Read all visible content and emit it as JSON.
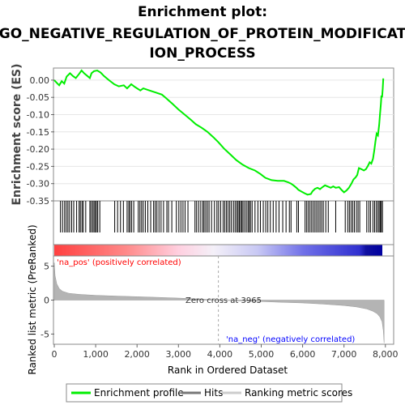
{
  "title_line1": "Enrichment plot:",
  "title_line2": "GO_NEGATIVE_REGULATION_OF_PROTEIN_MODIFICAT",
  "title_line3": "ION_PROCESS",
  "colors": {
    "enrichment": "#00ee00",
    "hits": "#000000",
    "metric_fill": "#b4b4b4",
    "pos_label": "#ff0000",
    "neg_label": "#0000ff",
    "zero_line": "#aaaaaa"
  },
  "chart_data": {
    "type": "line",
    "xlabel": "Rank in Ordered Dataset",
    "es_ylabel": "Enrichment score (ES)",
    "metric_ylabel": "Ranked list metric (PreRanked)",
    "xlim": [
      0,
      8200
    ],
    "x_ticks": [
      0,
      1000,
      2000,
      3000,
      4000,
      5000,
      6000,
      7000,
      8000
    ],
    "x_tick_labels": [
      "0",
      "1,000",
      "2,000",
      "3,000",
      "4,000",
      "5,000",
      "6,000",
      "7,000",
      "8,000"
    ],
    "es_ylim": [
      -0.35,
      0.035
    ],
    "es_ticks": [
      0.0,
      -0.05,
      -0.1,
      -0.15,
      -0.2,
      -0.25,
      -0.3,
      -0.35
    ],
    "es_tick_labels": [
      "0.00",
      "-0.05",
      "-0.10",
      "-0.15",
      "-0.20",
      "-0.25",
      "-0.30",
      "-0.35"
    ],
    "metric_ylim": [
      -6.5,
      6.5
    ],
    "metric_ticks": [
      5,
      0,
      -5
    ],
    "metric_tick_labels": [
      "5",
      "0",
      "-5"
    ],
    "zero_cross_rank": 3965,
    "zero_cross_label": "Zero cross at 3965",
    "pos_label": "'na_pos' (positively correlated)",
    "neg_label": "'na_neg' (negatively correlated)",
    "es_curve": [
      [
        0,
        0.0
      ],
      [
        60,
        -0.008
      ],
      [
        120,
        -0.015
      ],
      [
        180,
        -0.003
      ],
      [
        240,
        -0.01
      ],
      [
        300,
        0.01
      ],
      [
        380,
        0.02
      ],
      [
        450,
        0.012
      ],
      [
        520,
        0.006
      ],
      [
        600,
        0.018
      ],
      [
        660,
        0.028
      ],
      [
        720,
        0.02
      ],
      [
        800,
        0.012
      ],
      [
        860,
        0.006
      ],
      [
        900,
        0.02
      ],
      [
        960,
        0.026
      ],
      [
        1040,
        0.028
      ],
      [
        1120,
        0.022
      ],
      [
        1200,
        0.012
      ],
      [
        1320,
        0.0
      ],
      [
        1450,
        -0.012
      ],
      [
        1560,
        -0.018
      ],
      [
        1680,
        -0.015
      ],
      [
        1760,
        -0.024
      ],
      [
        1860,
        -0.012
      ],
      [
        1950,
        -0.02
      ],
      [
        2080,
        -0.03
      ],
      [
        2150,
        -0.024
      ],
      [
        2300,
        -0.03
      ],
      [
        2450,
        -0.036
      ],
      [
        2600,
        -0.042
      ],
      [
        2700,
        -0.052
      ],
      [
        2850,
        -0.068
      ],
      [
        3000,
        -0.085
      ],
      [
        3150,
        -0.1
      ],
      [
        3300,
        -0.115
      ],
      [
        3420,
        -0.128
      ],
      [
        3560,
        -0.138
      ],
      [
        3700,
        -0.15
      ],
      [
        3840,
        -0.165
      ],
      [
        3965,
        -0.18
      ],
      [
        4100,
        -0.198
      ],
      [
        4250,
        -0.215
      ],
      [
        4400,
        -0.232
      ],
      [
        4550,
        -0.245
      ],
      [
        4700,
        -0.255
      ],
      [
        4850,
        -0.262
      ],
      [
        4980,
        -0.272
      ],
      [
        5100,
        -0.283
      ],
      [
        5250,
        -0.29
      ],
      [
        5400,
        -0.292
      ],
      [
        5550,
        -0.292
      ],
      [
        5650,
        -0.296
      ],
      [
        5720,
        -0.3
      ],
      [
        5780,
        -0.305
      ],
      [
        5850,
        -0.312
      ],
      [
        5900,
        -0.318
      ],
      [
        5960,
        -0.322
      ],
      [
        6050,
        -0.328
      ],
      [
        6120,
        -0.332
      ],
      [
        6200,
        -0.33
      ],
      [
        6240,
        -0.322
      ],
      [
        6300,
        -0.315
      ],
      [
        6360,
        -0.312
      ],
      [
        6420,
        -0.316
      ],
      [
        6480,
        -0.31
      ],
      [
        6540,
        -0.305
      ],
      [
        6600,
        -0.308
      ],
      [
        6680,
        -0.312
      ],
      [
        6740,
        -0.308
      ],
      [
        6800,
        -0.312
      ],
      [
        6880,
        -0.31
      ],
      [
        6940,
        -0.318
      ],
      [
        7000,
        -0.325
      ],
      [
        7060,
        -0.32
      ],
      [
        7120,
        -0.312
      ],
      [
        7180,
        -0.3
      ],
      [
        7230,
        -0.288
      ],
      [
        7280,
        -0.282
      ],
      [
        7320,
        -0.275
      ],
      [
        7360,
        -0.255
      ],
      [
        7420,
        -0.258
      ],
      [
        7480,
        -0.262
      ],
      [
        7530,
        -0.258
      ],
      [
        7580,
        -0.248
      ],
      [
        7620,
        -0.238
      ],
      [
        7660,
        -0.242
      ],
      [
        7700,
        -0.228
      ],
      [
        7730,
        -0.205
      ],
      [
        7760,
        -0.178
      ],
      [
        7790,
        -0.155
      ],
      [
        7820,
        -0.16
      ],
      [
        7850,
        -0.13
      ],
      [
        7870,
        -0.1
      ],
      [
        7890,
        -0.07
      ],
      [
        7905,
        -0.045
      ],
      [
        7920,
        -0.05
      ],
      [
        7935,
        -0.025
      ],
      [
        7950,
        0.005
      ]
    ],
    "hit_ranks": [
      150,
      200,
      250,
      290,
      330,
      370,
      420,
      470,
      540,
      600,
      630,
      670,
      700,
      760,
      860,
      890,
      930,
      960,
      990,
      1020,
      1050,
      1100,
      1460,
      1530,
      1600,
      1670,
      1760,
      1800,
      1830,
      1870,
      1920,
      2030,
      2070,
      2110,
      2150,
      2200,
      2260,
      2330,
      2400,
      2440,
      2480,
      2530,
      2580,
      2640,
      2720,
      2760,
      2840,
      2950,
      3010,
      3060,
      3110,
      3160,
      3230,
      3400,
      3440,
      3490,
      3540,
      3590,
      3620,
      3660,
      3700,
      3740,
      3800,
      3870,
      3930,
      3970,
      4020,
      4080,
      4120,
      4160,
      4200,
      4240,
      4280,
      4330,
      4370,
      4410,
      4440,
      4470,
      4500,
      4530,
      4560,
      4600,
      4640,
      4680,
      4710,
      4740,
      4780,
      4850,
      4920,
      4980,
      5050,
      5110,
      5160,
      5220,
      5290,
      5360,
      5430,
      5520,
      5600,
      5680,
      5720,
      5860,
      5900,
      6060,
      6100,
      6140,
      6180,
      6220,
      6260,
      6300,
      6340,
      6380,
      6420,
      6460,
      6500,
      6560,
      6620,
      6800,
      7030,
      7090,
      7130,
      7170,
      7210,
      7250,
      7300,
      7340,
      7380,
      7550,
      7600,
      7640,
      7700,
      7740,
      7780,
      7820,
      7850,
      7880,
      7900,
      7930
    ],
    "metric_curve": [
      [
        0,
        5.5
      ],
      [
        20,
        3.6
      ],
      [
        60,
        2.4
      ],
      [
        120,
        1.7
      ],
      [
        200,
        1.3
      ],
      [
        350,
        1.0
      ],
      [
        600,
        0.85
      ],
      [
        1000,
        0.7
      ],
      [
        1500,
        0.6
      ],
      [
        2000,
        0.5
      ],
      [
        2500,
        0.4
      ],
      [
        3000,
        0.3
      ],
      [
        3500,
        0.17
      ],
      [
        3965,
        0.0
      ],
      [
        4500,
        -0.12
      ],
      [
        5000,
        -0.22
      ],
      [
        5500,
        -0.32
      ],
      [
        6000,
        -0.42
      ],
      [
        6500,
        -0.58
      ],
      [
        7000,
        -0.8
      ],
      [
        7300,
        -1.0
      ],
      [
        7550,
        -1.3
      ],
      [
        7700,
        -1.65
      ],
      [
        7800,
        -2.0
      ],
      [
        7870,
        -2.5
      ],
      [
        7920,
        -3.2
      ],
      [
        7950,
        -4.5
      ],
      [
        7970,
        -6.3
      ]
    ]
  },
  "legend": {
    "items": [
      {
        "label": "Enrichment profile",
        "color": "#00ee00"
      },
      {
        "label": "Hits",
        "color": "#777777"
      },
      {
        "label": "Ranking metric scores",
        "color": "#cccccc"
      }
    ]
  }
}
